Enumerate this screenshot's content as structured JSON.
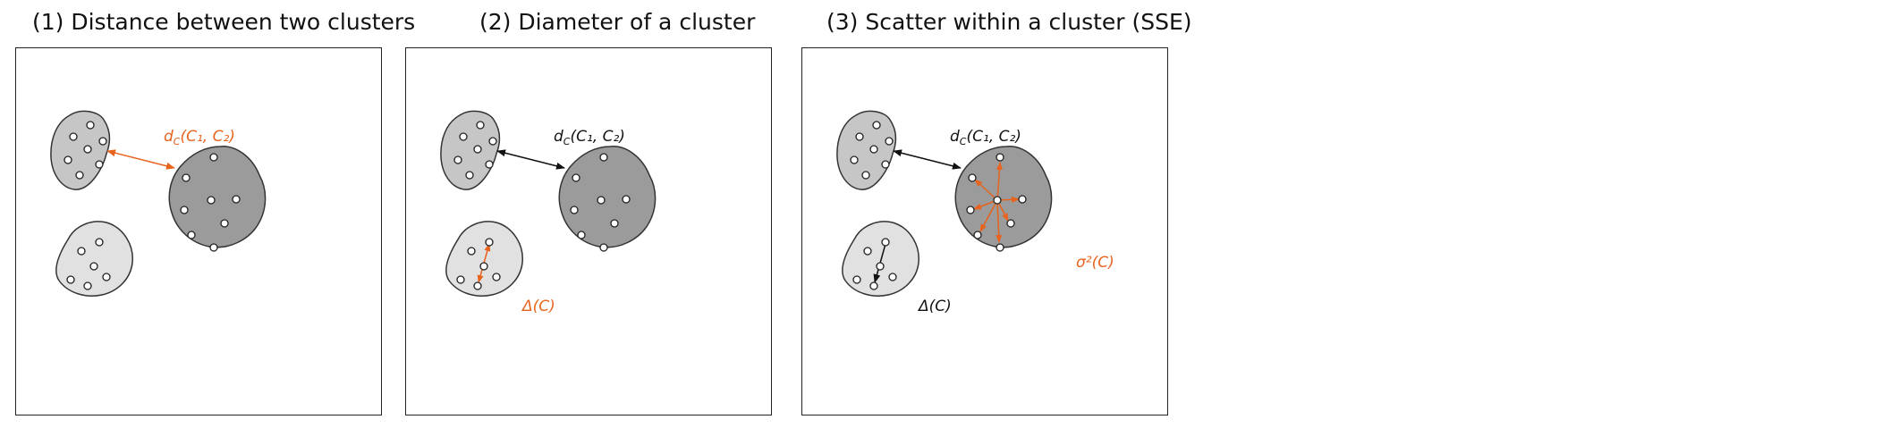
{
  "panels": [
    {
      "title": "(1) Distance between two clusters",
      "label": {
        "main": "d",
        "sub": "C",
        "rest": "(C₁, C₂)",
        "color": "#e8631d"
      }
    },
    {
      "title": "(2) Diameter of a cluster",
      "label": {
        "main": "d",
        "sub": "C",
        "rest": "(C₁, C₂)",
        "color": "#111111"
      },
      "diameter_label": {
        "text": "Δ(C)",
        "color": "#e8631d"
      }
    },
    {
      "title": "(3) Scatter within a cluster (SSE)",
      "label": {
        "main": "d",
        "sub": "C",
        "rest": "(C₁, C₂)",
        "color": "#111111"
      },
      "diameter_label": {
        "text": "Δ(C)",
        "color": "#111111"
      },
      "scatter_label": {
        "text": "σ²(C)",
        "color": "#e8631d"
      }
    }
  ],
  "colors": {
    "accent": "#e8631d",
    "cluster_small": "#c6c6c6",
    "cluster_large": "#9b9b9b",
    "cluster_light": "#e1e1e1",
    "outline": "#333333"
  }
}
